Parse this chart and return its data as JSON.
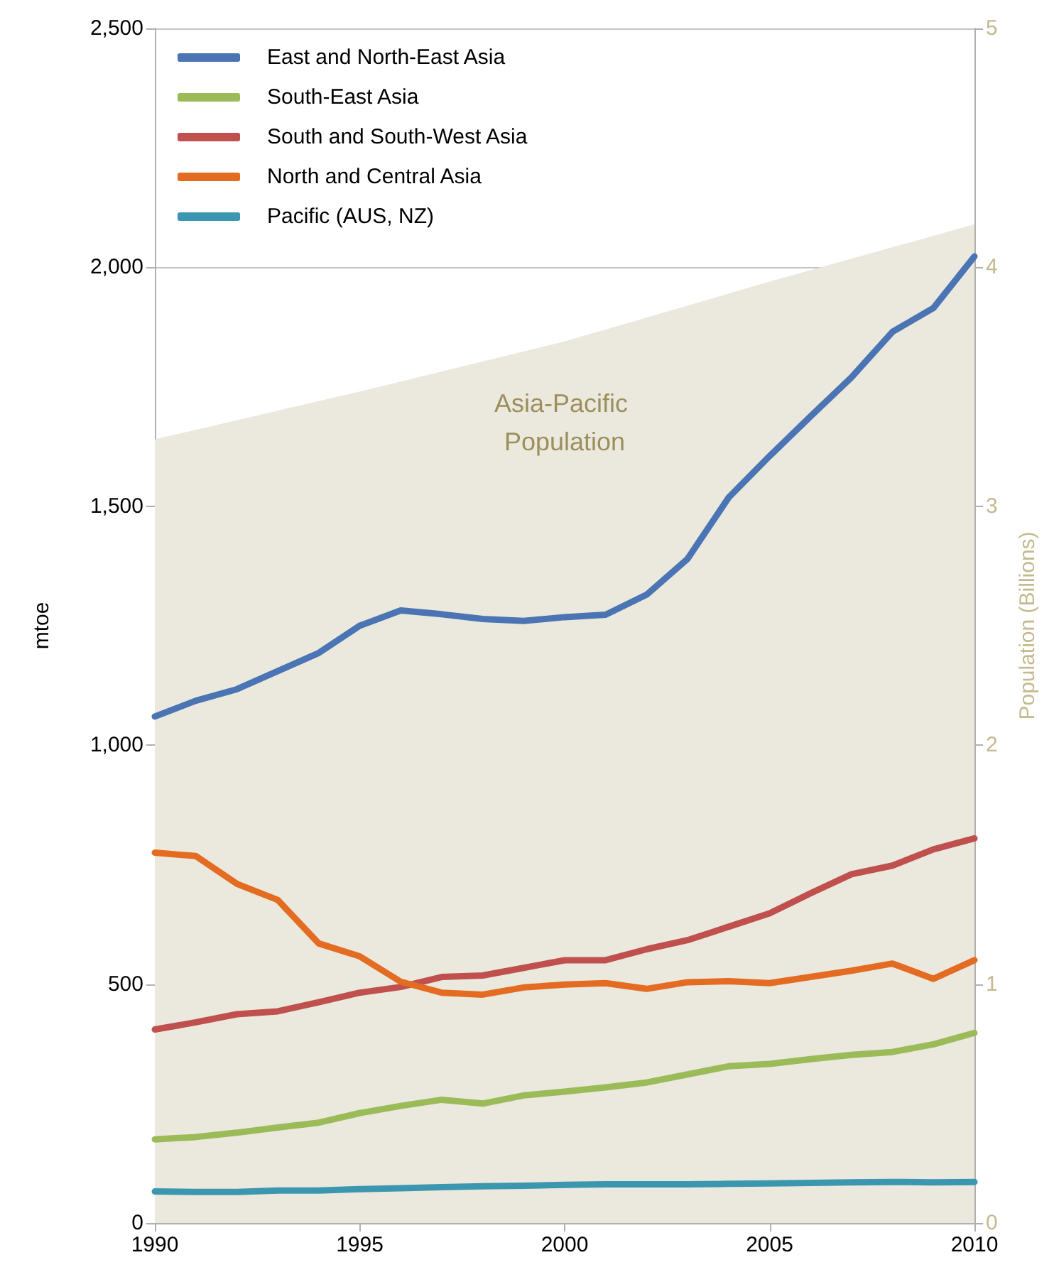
{
  "chart_data": {
    "type": "line",
    "ylabel": "mtoe",
    "y2label": "Population (Billions)",
    "x": [
      1990,
      1991,
      1992,
      1993,
      1994,
      1995,
      1996,
      1997,
      1998,
      1999,
      2000,
      2001,
      2002,
      2003,
      2004,
      2005,
      2006,
      2007,
      2008,
      2009,
      2010
    ],
    "xlim": [
      1990,
      2010
    ],
    "xticks": [
      1990,
      1995,
      2000,
      2005,
      2010
    ],
    "ylim": [
      0,
      2500
    ],
    "yticks": [
      0,
      {
        "value": 500,
        "label": "500"
      },
      {
        "value": 1000,
        "label": "1,000"
      },
      {
        "value": 1500,
        "label": "1,500"
      },
      {
        "value": 2000,
        "label": "2,000"
      },
      {
        "value": 2500,
        "label": "2,500"
      }
    ],
    "y2lim": [
      0,
      5
    ],
    "y2ticks": [
      0,
      1,
      2,
      3,
      4,
      5
    ],
    "grid": "y",
    "legend": "top left",
    "marker": "none",
    "line_style": "solid",
    "series": [
      {
        "name": "East and North-East Asia",
        "color": "#4a74b4",
        "values": [
          1060,
          1093,
          1117,
          1155,
          1193,
          1250,
          1282,
          1274,
          1264,
          1260,
          1268,
          1273,
          1315,
          1390,
          1518,
          1605,
          1688,
          1770,
          1865,
          1915,
          2023
        ]
      },
      {
        "name": "South-East Asia",
        "color": "#9bbb59",
        "values": [
          175,
          180,
          189,
          200,
          210,
          230,
          245,
          258,
          250,
          267,
          275,
          284,
          294,
          311,
          328,
          333,
          343,
          352,
          358,
          374,
          398
        ]
      },
      {
        "name": "South and South-West Asia",
        "color": "#c0504d",
        "values": [
          405,
          420,
          437,
          443,
          462,
          482,
          494,
          515,
          518,
          534,
          550,
          550,
          573,
          592,
          620,
          648,
          690,
          730,
          748,
          782,
          805
        ]
      },
      {
        "name": "North and Central Asia",
        "color": "#e46c22",
        "values": [
          775,
          768,
          710,
          676,
          585,
          558,
          505,
          482,
          478,
          493,
          499,
          502,
          490,
          504,
          506,
          502,
          515,
          528,
          543,
          511,
          550
        ]
      },
      {
        "name": "Pacific (AUS, NZ)",
        "color": "#3b96b0",
        "values": [
          66,
          65,
          65,
          68,
          68,
          71,
          73,
          75,
          77,
          78,
          80,
          81,
          81,
          81,
          82,
          83,
          84,
          85,
          86,
          85,
          86
        ]
      },
      {
        "type": "area",
        "axis": "y2",
        "color": "#ebe8dd",
        "x": [
          1990,
          1995,
          2000,
          2005,
          2010
        ],
        "values": [
          3.28,
          3.48,
          3.69,
          3.94,
          4.18
        ]
      }
    ],
    "annotations": [
      "Asia-Pacific Population"
    ]
  }
}
